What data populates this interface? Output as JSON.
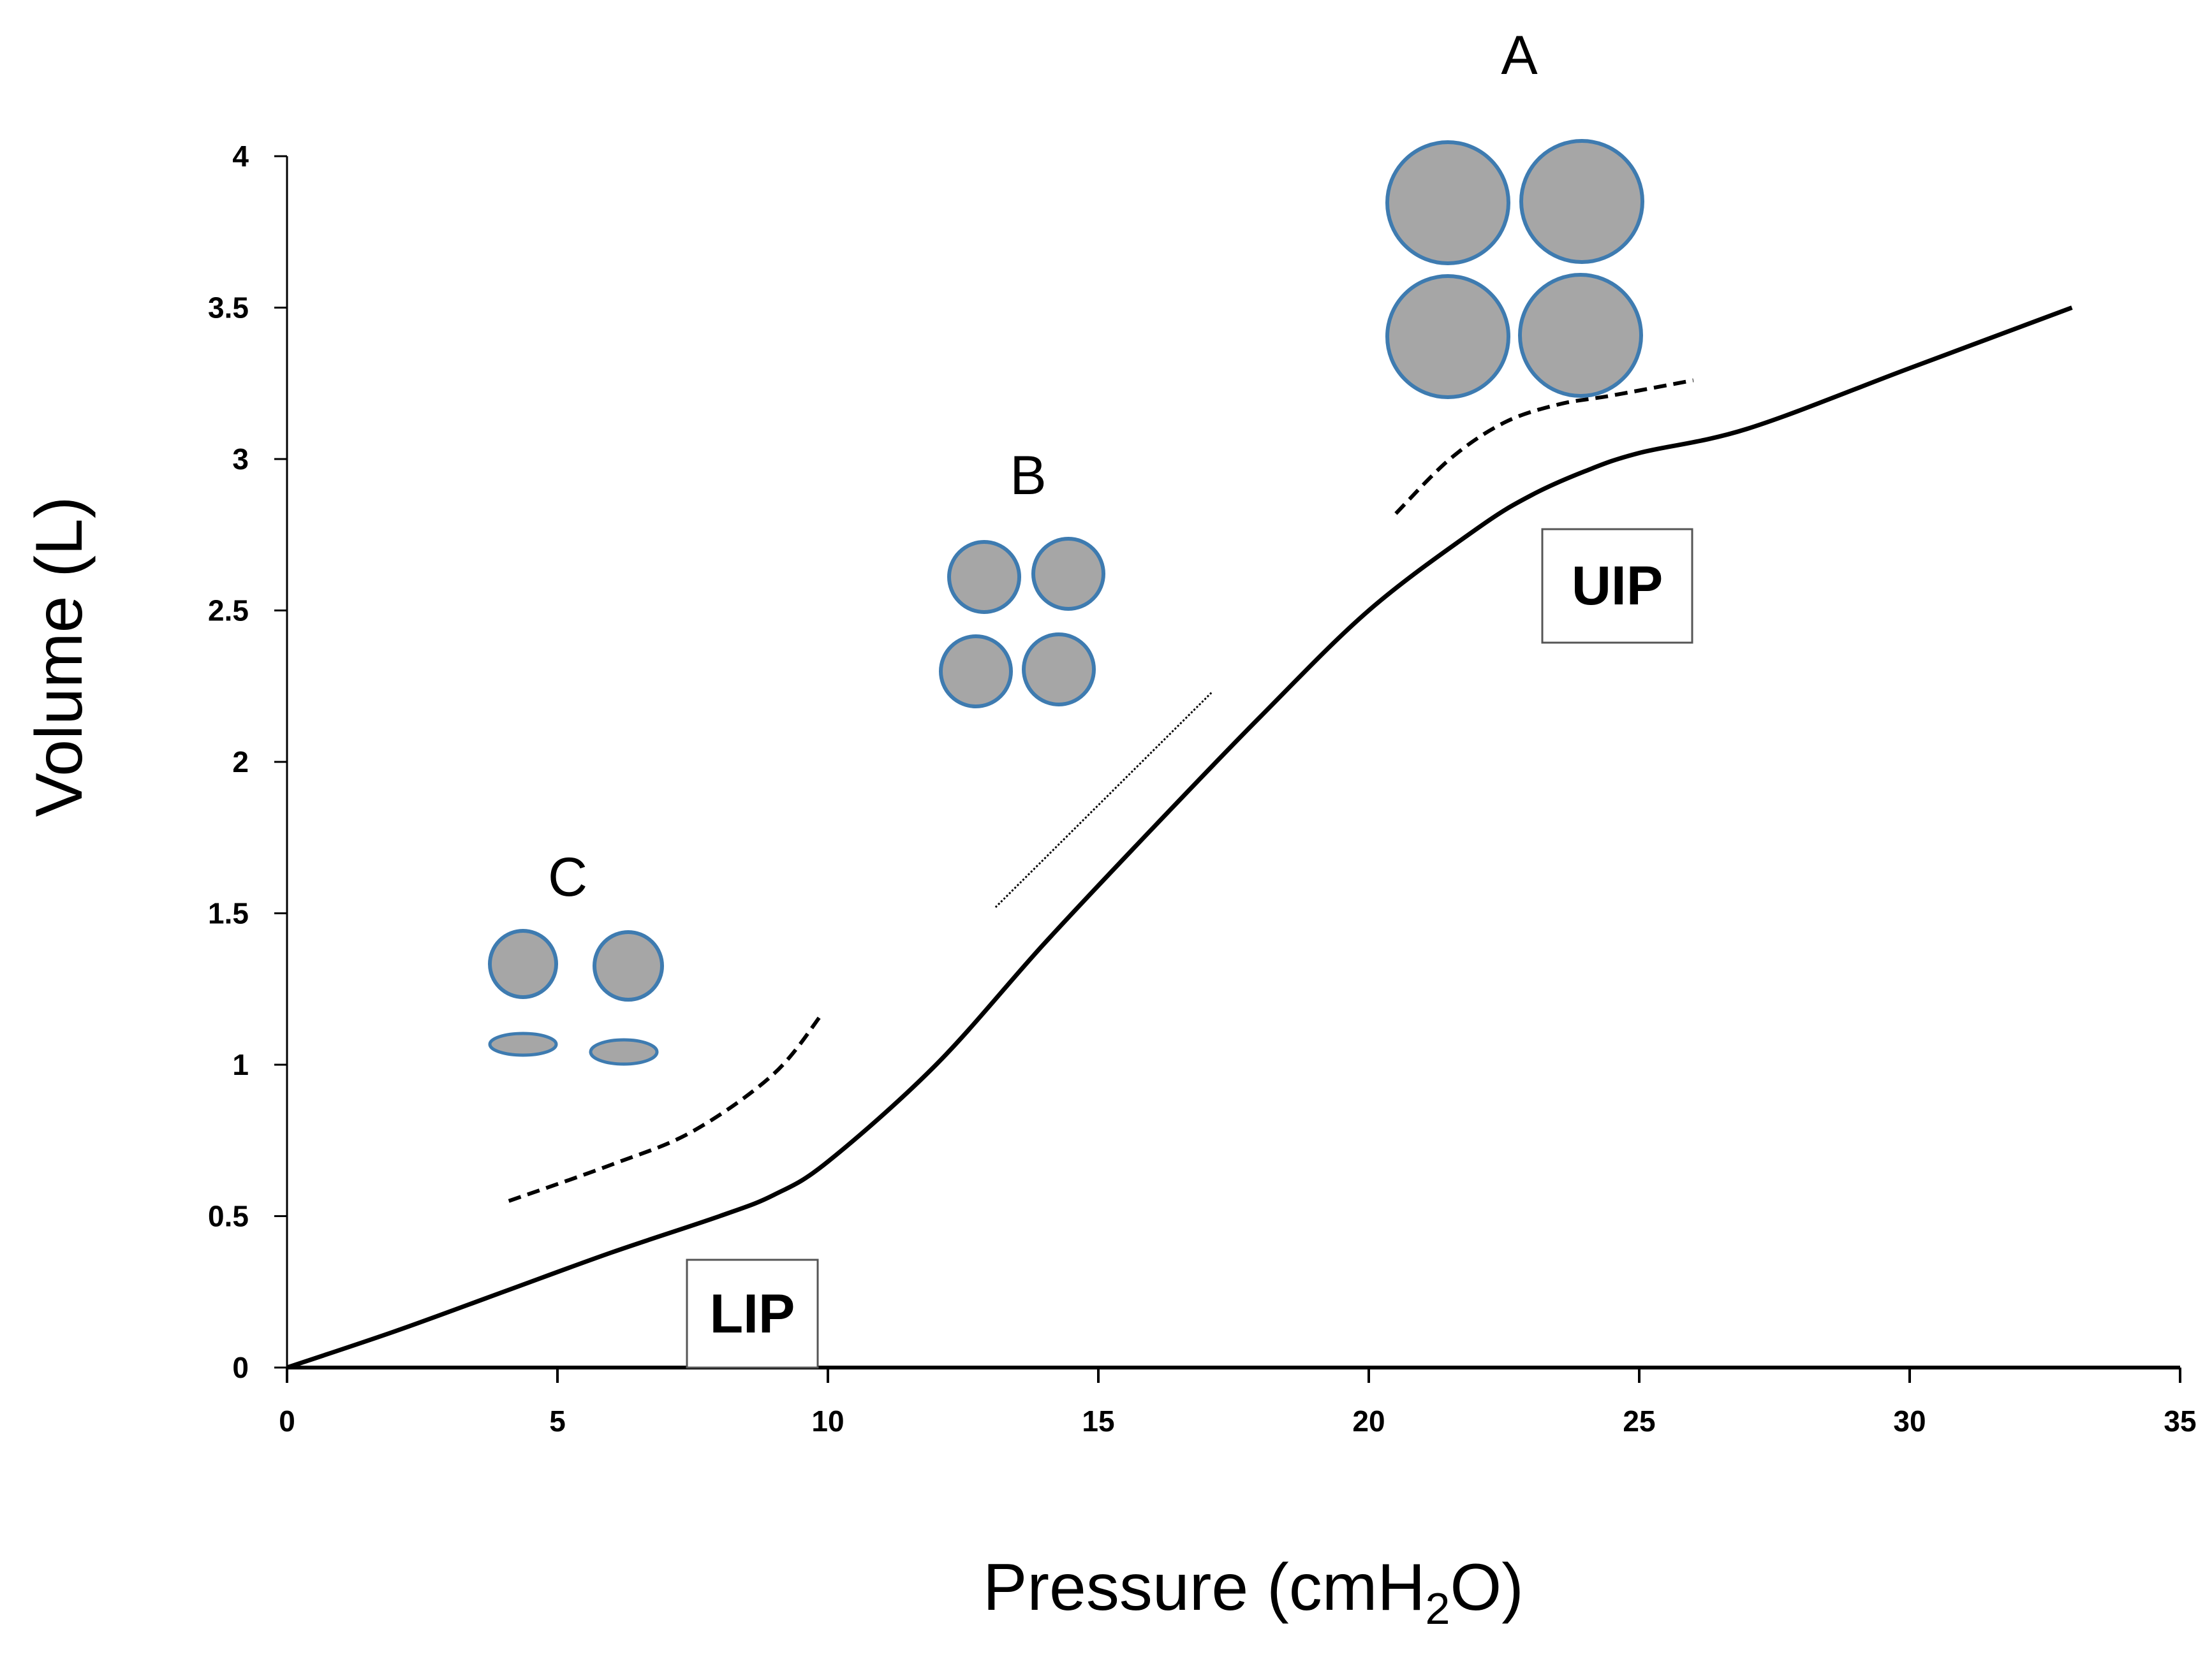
{
  "colors": {
    "axis": "#000000",
    "curve": "#000000",
    "alveolus_fill": "#a6a6a6",
    "alveolus_stroke": "#3e7bb0",
    "box_stroke": "#555555"
  },
  "chart_data": {
    "type": "line",
    "title": "",
    "xlabel": "Pressure (cmH2O)",
    "xlabel_main": "Pressure (cmH",
    "xlabel_sub": "2",
    "xlabel_end": "O)",
    "ylabel": "Volume (L)",
    "xlim": [
      0,
      35
    ],
    "ylim": [
      0,
      4
    ],
    "xticks": [
      0,
      5,
      10,
      15,
      20,
      25,
      30,
      35
    ],
    "yticks": [
      0,
      0.5,
      1,
      1.5,
      2,
      2.5,
      3,
      3.5,
      4
    ],
    "ytick_labels": [
      "0",
      "0.5",
      "1",
      "1.5",
      "2",
      "2.5",
      "3",
      "3.5",
      "4"
    ],
    "grid": false,
    "series": [
      {
        "name": "Pressure-volume curve",
        "x": [
          0,
          2,
          4,
          6,
          8,
          9,
          10,
          12,
          14,
          16,
          18,
          20,
          22,
          23,
          24,
          25,
          27,
          30,
          33
        ],
        "y": [
          0,
          0.12,
          0.25,
          0.38,
          0.5,
          0.57,
          0.68,
          1.0,
          1.4,
          1.78,
          2.15,
          2.5,
          2.77,
          2.88,
          2.96,
          3.02,
          3.1,
          3.3,
          3.5
        ]
      }
    ],
    "annotations": {
      "tangents": [
        {
          "name": "C",
          "style": "dashed",
          "x": [
            4.1,
            6,
            7.5,
            9,
            9.9
          ],
          "y": [
            0.55,
            0.67,
            0.78,
            0.97,
            1.17
          ]
        },
        {
          "name": "B",
          "style": "dotted",
          "x": [
            13.1,
            17.1
          ],
          "y": [
            1.52,
            2.23
          ]
        },
        {
          "name": "A",
          "style": "dashed",
          "x": [
            20.5,
            21.5,
            22.5,
            23.5,
            24.5,
            26.0
          ],
          "y": [
            2.82,
            3.0,
            3.12,
            3.18,
            3.21,
            3.26
          ]
        }
      ],
      "points": [
        {
          "label": "LIP",
          "x": 8.8,
          "y": 0.0
        },
        {
          "label": "UIP",
          "x": 24.8,
          "y": 2.5
        }
      ],
      "panels": [
        {
          "label": "A",
          "alveoli_state": "overdistended"
        },
        {
          "label": "B",
          "alveoli_state": "open"
        },
        {
          "label": "C",
          "alveoli_state": "partly collapsed"
        }
      ]
    }
  }
}
